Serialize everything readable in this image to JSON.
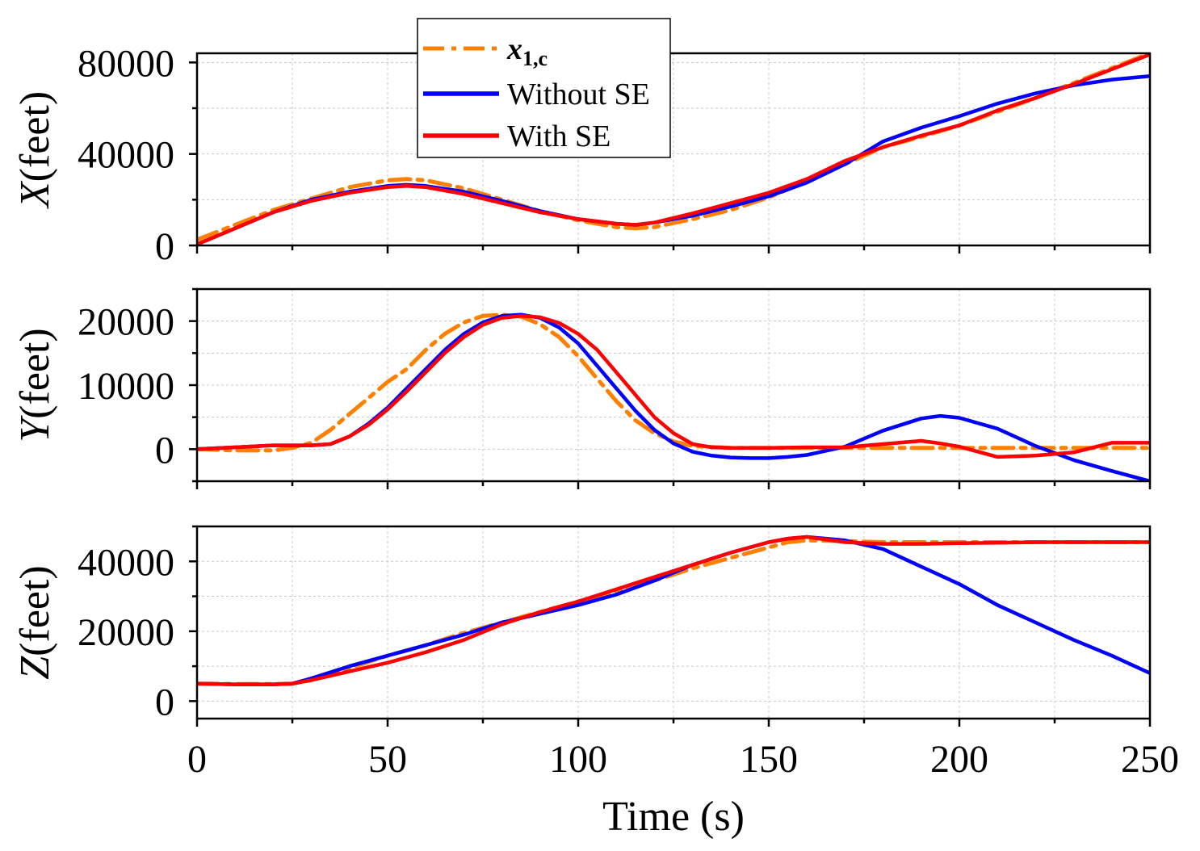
{
  "chart_data": {
    "type": "line",
    "xlabel": "Time (s)",
    "xlim": [
      0,
      250
    ],
    "xticks": [
      0,
      50,
      100,
      150,
      200,
      250
    ],
    "legend": {
      "placement": "top-left",
      "entries": [
        {
          "symbol": "x",
          "subscript": "1,c",
          "series": "x1c"
        },
        {
          "label": "Without SE",
          "series": "without_se"
        },
        {
          "label": "With SE",
          "series": "with_se"
        }
      ]
    },
    "series_styles": [
      {
        "id": "x1c",
        "color": "#ff8000",
        "style": "dash-dot"
      },
      {
        "id": "without_se",
        "color": "#0000ff",
        "style": "solid"
      },
      {
        "id": "with_se",
        "color": "#ff0000",
        "style": "solid"
      }
    ],
    "subplots": [
      {
        "ylabel_var": "X",
        "ylabel_unit": "(feet)",
        "ylim": [
          0,
          84000
        ],
        "yticks": [
          0,
          40000,
          80000
        ],
        "yticklabels": [
          "0",
          "40000",
          "80000"
        ],
        "series": [
          {
            "name": "x1c",
            "x": [
              0,
              10,
              20,
              30,
              40,
              50,
              55,
              60,
              70,
              80,
              90,
              100,
              110,
              115,
              120,
              130,
              140,
              150,
              160,
              170,
              180,
              190,
              200,
              210,
              220,
              230,
              240,
              250
            ],
            "values": [
              2500,
              9000,
              15500,
              20500,
              25500,
              28500,
              29000,
              28500,
              25000,
              20000,
              15000,
              11000,
              8000,
              7500,
              8000,
              11500,
              15500,
              21000,
              28000,
              35500,
              43000,
              47500,
              52500,
              58500,
              64500,
              71000,
              77500,
              84000
            ]
          },
          {
            "name": "without_se",
            "x": [
              0,
              10,
              20,
              30,
              40,
              50,
              55,
              60,
              70,
              80,
              90,
              100,
              110,
              115,
              120,
              130,
              140,
              150,
              160,
              170,
              180,
              190,
              200,
              210,
              220,
              230,
              240,
              250
            ],
            "values": [
              500,
              7500,
              14500,
              20000,
              23500,
              26000,
              26500,
              26000,
              23500,
              19500,
              15000,
              11500,
              9500,
              9000,
              10000,
              13000,
              17000,
              21500,
              27500,
              35500,
              45500,
              51500,
              56500,
              62000,
              66500,
              70000,
              72500,
              74000
            ]
          },
          {
            "name": "with_se",
            "x": [
              0,
              10,
              20,
              30,
              40,
              50,
              55,
              60,
              70,
              80,
              90,
              100,
              110,
              115,
              120,
              130,
              140,
              150,
              160,
              170,
              180,
              190,
              200,
              210,
              220,
              230,
              240,
              250
            ],
            "values": [
              500,
              7500,
              14500,
              19500,
              23000,
              25500,
              26000,
              25500,
              22500,
              18500,
              14500,
              11500,
              9500,
              9000,
              10000,
              14000,
              18500,
              23000,
              29000,
              37000,
              43000,
              48000,
              52500,
              59000,
              64500,
              70500,
              77000,
              83500
            ]
          }
        ]
      },
      {
        "ylabel_var": "Y",
        "ylabel_unit": "(feet)",
        "ylim": [
          -5000,
          25000
        ],
        "yticks": [
          0,
          10000,
          20000
        ],
        "yticklabels": [
          "0",
          "10000",
          "20000"
        ],
        "series": [
          {
            "name": "x1c",
            "x": [
              0,
              10,
              20,
              25,
              30,
              35,
              40,
              45,
              50,
              55,
              60,
              65,
              70,
              75,
              80,
              85,
              90,
              95,
              100,
              105,
              110,
              115,
              120,
              125,
              130,
              140,
              150,
              160,
              170,
              180,
              190,
              200,
              210,
              220,
              230,
              240,
              250
            ],
            "values": [
              0,
              -200,
              -200,
              200,
              1000,
              3000,
              5500,
              8000,
              10500,
              12500,
              15500,
              18000,
              19800,
              20800,
              21000,
              20700,
              19500,
              17500,
              14500,
              11000,
              7500,
              4500,
              2500,
              1200,
              500,
              200,
              200,
              200,
              200,
              200,
              200,
              200,
              200,
              200,
              200,
              200,
              200
            ]
          },
          {
            "name": "without_se",
            "x": [
              0,
              10,
              20,
              25,
              30,
              35,
              40,
              45,
              50,
              55,
              60,
              65,
              70,
              75,
              80,
              85,
              90,
              95,
              100,
              105,
              110,
              115,
              120,
              125,
              130,
              135,
              140,
              145,
              150,
              155,
              160,
              170,
              180,
              190,
              195,
              200,
              210,
              220,
              230,
              240,
              250
            ],
            "values": [
              0,
              300,
              600,
              600,
              600,
              800,
              2000,
              4000,
              6500,
              9500,
              12500,
              15500,
              18000,
              19800,
              20800,
              21000,
              20500,
              19000,
              16500,
              13000,
              9500,
              6000,
              3000,
              900,
              -400,
              -1000,
              -1300,
              -1400,
              -1400,
              -1200,
              -900,
              400,
              2900,
              4800,
              5200,
              4900,
              3200,
              500,
              -1700,
              -3400,
              -5000
            ]
          },
          {
            "name": "with_se",
            "x": [
              0,
              10,
              20,
              25,
              30,
              35,
              40,
              45,
              50,
              55,
              60,
              65,
              70,
              75,
              80,
              85,
              90,
              95,
              100,
              105,
              110,
              115,
              120,
              125,
              130,
              135,
              140,
              150,
              160,
              170,
              180,
              190,
              195,
              200,
              210,
              220,
              230,
              240,
              250
            ],
            "values": [
              0,
              300,
              600,
              600,
              600,
              800,
              2000,
              3800,
              6200,
              9000,
              12000,
              15000,
              17500,
              19400,
              20500,
              20800,
              20600,
              19700,
              18000,
              15500,
              12000,
              8500,
              5000,
              2500,
              800,
              300,
              200,
              200,
              300,
              300,
              800,
              1300,
              900,
              400,
              -1200,
              -1000,
              -500,
              1000,
              1000
            ]
          }
        ]
      },
      {
        "ylabel_var": "Z",
        "ylabel_unit": "(feet)",
        "ylim": [
          -5000,
          50000
        ],
        "yticks": [
          0,
          20000,
          40000
        ],
        "yticklabels": [
          "0",
          "20000",
          "40000"
        ],
        "series": [
          {
            "name": "x1c",
            "x": [
              0,
              10,
              20,
              25,
              30,
              40,
              50,
              60,
              70,
              80,
              90,
              100,
              110,
              120,
              130,
              140,
              150,
              155,
              160,
              170,
              180,
              190,
              200,
              210,
              220,
              230,
              240,
              250
            ],
            "values": [
              5000,
              4900,
              4900,
              5000,
              6000,
              9500,
              13000,
              16000,
              19500,
              22500,
              25500,
              28500,
              31500,
              34500,
              38000,
              41000,
              44000,
              45500,
              46000,
              45800,
              45500,
              45500,
              45500,
              45500,
              45500,
              45500,
              45500,
              45500
            ]
          },
          {
            "name": "without_se",
            "x": [
              0,
              10,
              20,
              25,
              30,
              40,
              50,
              60,
              70,
              80,
              90,
              100,
              110,
              120,
              130,
              140,
              150,
              155,
              160,
              170,
              180,
              190,
              200,
              210,
              220,
              230,
              240,
              250
            ],
            "values": [
              5000,
              4800,
              4800,
              5000,
              6500,
              10000,
              13000,
              16000,
              19000,
              22500,
              25000,
              27500,
              30500,
              34500,
              39000,
              42500,
              45500,
              46500,
              47000,
              46000,
              43500,
              38500,
              33500,
              27500,
              22500,
              17500,
              13000,
              8000
            ]
          },
          {
            "name": "with_se",
            "x": [
              0,
              10,
              20,
              25,
              30,
              40,
              50,
              60,
              70,
              80,
              90,
              100,
              110,
              120,
              130,
              140,
              150,
              155,
              160,
              170,
              180,
              190,
              200,
              210,
              220,
              230,
              240,
              250
            ],
            "values": [
              5000,
              4800,
              4800,
              5000,
              6000,
              8500,
              11000,
              14000,
              17500,
              22000,
              25500,
              28500,
              32000,
              35500,
              39000,
              42500,
              45500,
              46500,
              47000,
              45500,
              45000,
              45000,
              45200,
              45300,
              45500,
              45500,
              45500,
              45500
            ]
          }
        ]
      }
    ]
  }
}
